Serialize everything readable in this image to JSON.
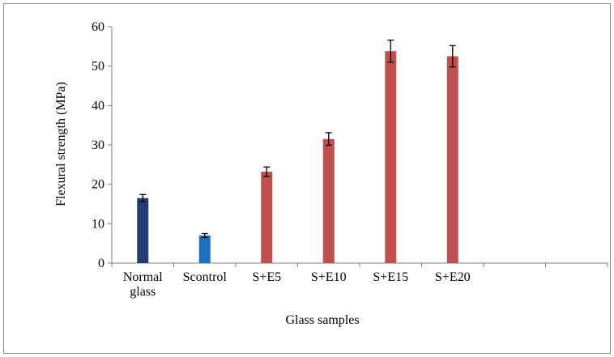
{
  "chart_data": {
    "type": "bar",
    "xlabel": "Glass samples",
    "ylabel": "Flexural strength (MPa)",
    "ylim": [
      0,
      60
    ],
    "yticks": [
      0,
      10,
      20,
      30,
      40,
      50,
      60
    ],
    "categories": [
      [
        "Normal",
        "glass"
      ],
      [
        "Scontrol"
      ],
      [
        "S+E5"
      ],
      [
        "S+E10"
      ],
      [
        "S+E15"
      ],
      [
        "S+E20"
      ]
    ],
    "values": [
      16.5,
      7.0,
      23.2,
      31.5,
      53.8,
      52.5
    ],
    "errors": [
      0.9,
      0.5,
      1.2,
      1.6,
      2.8,
      2.7
    ],
    "colors": [
      "#1f3f75",
      "#1f6fbf",
      "#c0504d",
      "#c0504d",
      "#c0504d",
      "#c0504d"
    ],
    "empty_slots_after": 2,
    "grid": false,
    "legend": "none"
  }
}
